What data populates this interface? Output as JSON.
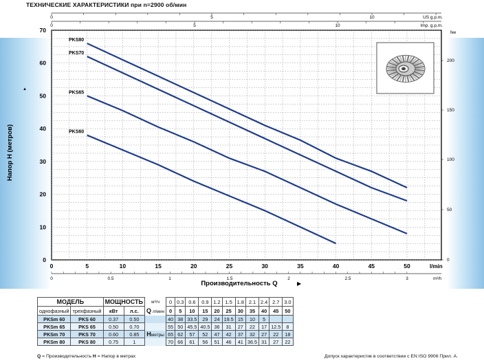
{
  "heading": "ТЕХНИЧЕСКИЕ ХАРАКТЕРИСТИКИ при n=2900 об/мин",
  "chart_data": {
    "type": "line",
    "x": [
      0,
      5,
      10,
      15,
      20,
      25,
      30,
      35,
      40,
      45,
      50
    ],
    "xlabel": "Производительность Q",
    "ylabel": "Напор H (метров)",
    "xunit": "l/min",
    "xlim": [
      0,
      52
    ],
    "ylim": [
      0,
      70
    ],
    "xticks": [
      0,
      5,
      10,
      15,
      20,
      25,
      30,
      35,
      40,
      45,
      50
    ],
    "yticks": [
      0,
      10,
      20,
      30,
      40,
      50,
      60,
      70
    ],
    "grid": true,
    "series": [
      {
        "name": "PKS60",
        "x": [
          5,
          10,
          15,
          20,
          25,
          30,
          35,
          40
        ],
        "values": [
          38,
          33.5,
          29,
          24,
          19.5,
          15,
          10,
          5
        ]
      },
      {
        "name": "PKS65",
        "x": [
          5,
          10,
          15,
          20,
          25,
          30,
          35,
          40,
          45,
          50
        ],
        "values": [
          50,
          45.5,
          40.5,
          36,
          31,
          27,
          22,
          17,
          12.5,
          8
        ]
      },
      {
        "name": "PKS70",
        "x": [
          5,
          10,
          15,
          20,
          25,
          30,
          35,
          40,
          45,
          50
        ],
        "values": [
          62,
          57,
          52,
          47,
          42,
          37,
          32,
          27,
          22,
          18
        ]
      },
      {
        "name": "PKS80",
        "x": [
          5,
          10,
          15,
          20,
          25,
          30,
          35,
          40,
          45,
          50
        ],
        "values": [
          66,
          61,
          56,
          51,
          46,
          41,
          36.5,
          31,
          27,
          22
        ]
      }
    ],
    "top_axes": [
      {
        "unit": "US g.p.m.",
        "ticks": [
          "0",
          "5",
          "10"
        ]
      },
      {
        "unit": "Imp. g.p.m.",
        "ticks": [
          "0",
          "5",
          "10"
        ]
      }
    ],
    "right_axis": {
      "unit": "fee",
      "ticks": [
        "0",
        "50",
        "100",
        "150",
        "200"
      ]
    },
    "bottom_axis2": {
      "unit": "m³/h",
      "ticks": [
        "0",
        "0.5",
        "1",
        "1.5",
        "2",
        "2.5",
        "3"
      ]
    }
  },
  "table": {
    "model_header": "МОДЕЛЬ",
    "power_header": "МОЩНОСТЬ",
    "single_phase": "однофазный",
    "three_phase": "трехфазный",
    "kw": "кВт",
    "hp": "л.с.",
    "q_label": "Q",
    "h_label": "H",
    "unit_m3h": "м³/ч",
    "unit_lmin": "л/мин",
    "unit_m": "метры",
    "flow_m3h": [
      "0",
      "0.3",
      "0.6",
      "0.9",
      "1.2",
      "1.5",
      "1.8",
      "2.1",
      "2.4",
      "2.7",
      "3.0"
    ],
    "flow_lmin": [
      "0",
      "5",
      "10",
      "15",
      "20",
      "25",
      "30",
      "35",
      "40",
      "45",
      "50"
    ],
    "rows": [
      {
        "m1": "PKSm 60",
        "m3": "PKS 60",
        "kw": "0.37",
        "hp": "0.50",
        "h": [
          "40",
          "38",
          "33.5",
          "29",
          "24",
          "19.5",
          "15",
          "10",
          "5",
          "",
          ""
        ]
      },
      {
        "m1": "PKSm 65",
        "m3": "PKS 65",
        "kw": "0.50",
        "hp": "0.70",
        "h": [
          "55",
          "50",
          "45.5",
          "40.5",
          "36",
          "31",
          "27",
          "22",
          "17",
          "12.5",
          "8"
        ]
      },
      {
        "m1": "PKSm 70",
        "m3": "PKS 70",
        "kw": "0.60",
        "hp": "0.85",
        "h": [
          "65",
          "62",
          "57",
          "52",
          "47",
          "42",
          "37",
          "32",
          "27",
          "22",
          "18"
        ]
      },
      {
        "m1": "PKSm 80",
        "m3": "PKS 80",
        "kw": "0.75",
        "hp": "1",
        "h": [
          "70",
          "66",
          "61",
          "56",
          "51",
          "46",
          "41",
          "36.5",
          "31",
          "27",
          "22"
        ]
      }
    ]
  },
  "footer": {
    "left_q": "Q",
    "left_q_text": " = Производительность ",
    "left_h": "H",
    "left_h_text": " = Напор в метрах",
    "right": "Допуск характеристик в соответствии с EN ISO 9906 Прил. A."
  },
  "colors": {
    "curve": "#1e3c8c",
    "grid": "#8a8a8a",
    "water": "#2f8fd0"
  }
}
